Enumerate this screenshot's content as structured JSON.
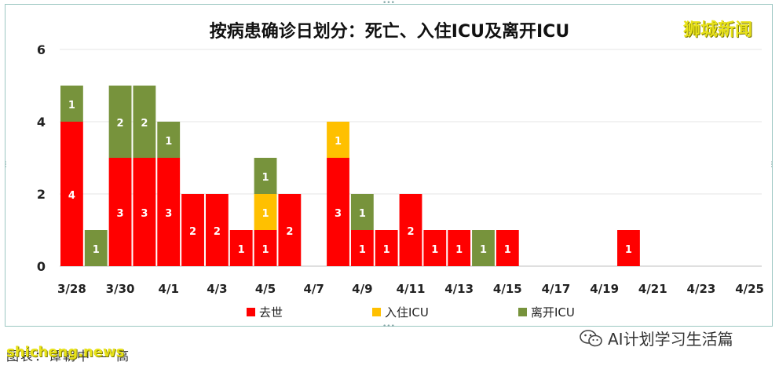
{
  "chart_data": {
    "type": "bar",
    "stacked": true,
    "title": "按病患确诊日划分：死亡、入住ICU及离开ICU",
    "categories": [
      "3/28",
      "3/29",
      "3/30",
      "3/31",
      "4/1",
      "4/2",
      "4/3",
      "4/4",
      "4/5",
      "4/6",
      "4/7",
      "4/8",
      "4/9",
      "4/10",
      "4/11",
      "4/12",
      "4/13",
      "4/14",
      "4/15",
      "4/16",
      "4/17",
      "4/18",
      "4/19",
      "4/20",
      "4/21",
      "4/22",
      "4/23",
      "4/24",
      "4/25"
    ],
    "tick_labels": [
      "3/28",
      "3/30",
      "4/1",
      "4/3",
      "4/5",
      "4/7",
      "4/9",
      "4/11",
      "4/13",
      "4/15",
      "4/17",
      "4/19",
      "4/21",
      "4/23",
      "4/25"
    ],
    "series": [
      {
        "name": "去世",
        "color": "#ff0000",
        "values": [
          4,
          0,
          3,
          3,
          3,
          2,
          2,
          1,
          1,
          2,
          0,
          3,
          1,
          1,
          2,
          1,
          1,
          0,
          1,
          0,
          0,
          0,
          0,
          1,
          0,
          0,
          0,
          0,
          0
        ]
      },
      {
        "name": "入住ICU",
        "color": "#ffc000",
        "values": [
          0,
          0,
          0,
          0,
          0,
          0,
          0,
          0,
          1,
          0,
          0,
          1,
          0,
          0,
          0,
          0,
          0,
          0,
          0,
          0,
          0,
          0,
          0,
          0,
          0,
          0,
          0,
          0,
          0
        ]
      },
      {
        "name": "离开ICU",
        "color": "#77933c",
        "values": [
          1,
          1,
          2,
          2,
          1,
          0,
          0,
          0,
          1,
          0,
          0,
          0,
          1,
          0,
          0,
          0,
          0,
          1,
          0,
          0,
          0,
          0,
          0,
          0,
          0,
          0,
          0,
          0,
          0
        ]
      }
    ],
    "ylim": [
      0,
      6
    ],
    "yticks": [
      0,
      2,
      4,
      6
    ],
    "grid": true,
    "legend_position": "bottom"
  },
  "watermarks": {
    "top_right": "狮城新闻",
    "bottom_left": "shicheng.news",
    "bottom_left_caption": "图表：谭朝中 — 高",
    "bottom_right": "AI计划学习生活篇"
  }
}
